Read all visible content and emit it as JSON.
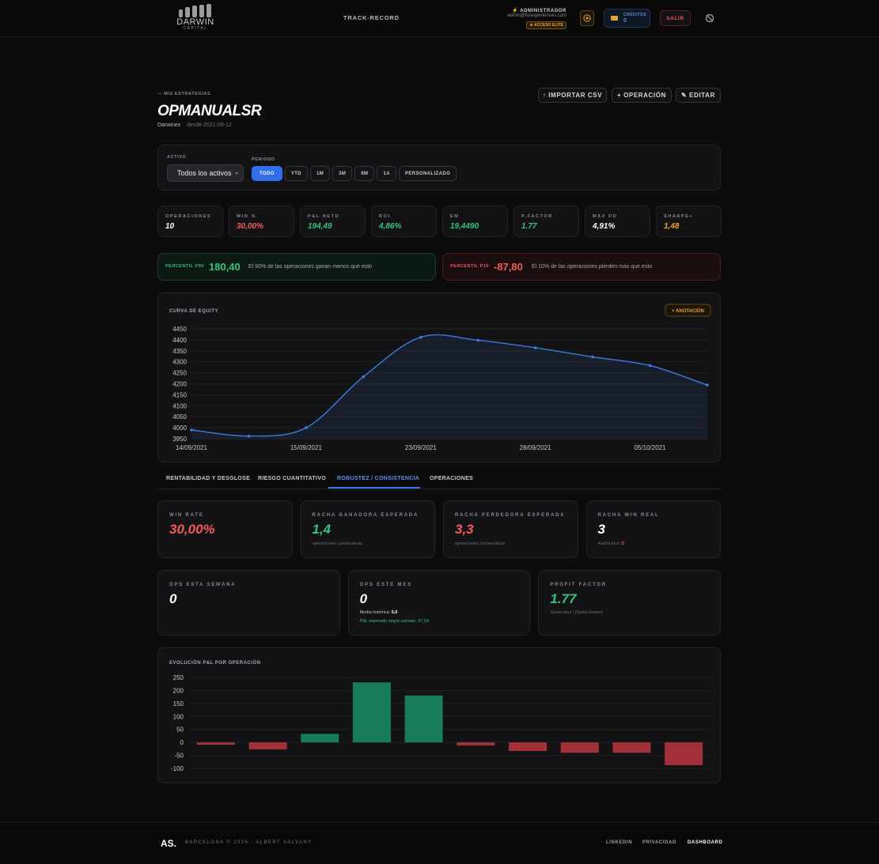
{
  "header": {
    "logo": "DARWIN",
    "logo_sub": "CAPITAL",
    "nav": "TRACK-RECORD",
    "role": "⚡ ADMINISTRADOR",
    "email": "admin@forexperiences.com",
    "badge": "★ ACCESO ELITE",
    "credits_label": "CRÉDITOS",
    "credits_value": "0",
    "logout": "SALIR"
  },
  "page": {
    "breadcrumb": "— MIS ESTRATEGIAS",
    "title": "OPMANUALSR",
    "broker": "Darwinex",
    "since": "desde 2021-09-12",
    "actions": [
      "↑ IMPORTAR CSV",
      "+ OPERACIÓN",
      "✎ EDITAR"
    ]
  },
  "filters": {
    "asset_label": "ACTIVO",
    "asset_value": "Todos los activos",
    "period_label": "PERIODO",
    "periods": [
      "TODO",
      "YTD",
      "1M",
      "3M",
      "6M",
      "1A",
      "PERSONALIZADO"
    ],
    "active_period": 0
  },
  "stats": [
    {
      "label": "OPERACIONES",
      "value": "10",
      "tone": "white"
    },
    {
      "label": "WIN %",
      "value": "30,00%",
      "tone": "red"
    },
    {
      "label": "P&L NETO",
      "value": "194,49",
      "tone": "green"
    },
    {
      "label": "ROI",
      "value": "4,86%",
      "tone": "green"
    },
    {
      "label": "EM",
      "value": "19,4490",
      "tone": "green"
    },
    {
      "label": "P.FACTOR",
      "value": "1.77",
      "tone": "green"
    },
    {
      "label": "MAX DD",
      "value": "4,91%",
      "tone": "white"
    },
    {
      "label": "SHARPE+",
      "value": "1,48",
      "tone": "orange"
    }
  ],
  "percentiles": [
    {
      "label": "PERCENTIL P90",
      "value": "180,40",
      "text": "El 90% de las operaciones ganan menos que esto",
      "tone": "green"
    },
    {
      "label": "PERCENTIL P10",
      "value": "-87,80",
      "text": "El 10% de las operaciones pierden más que esto",
      "tone": "red"
    }
  ],
  "tabs": {
    "items": [
      "RENTABILIDAD Y DESGLOSE",
      "RIESGO CUANTITATIVO",
      "ROBUSTEZ / CONSISTENCIA",
      "OPERACIONES"
    ],
    "active": 2
  },
  "cards": [
    [
      {
        "label": "WIN RATE",
        "value": "30,00%",
        "tone": "red"
      },
      {
        "label": "RACHA GANADORA ESPERADA",
        "value": "1,4",
        "tone": "green",
        "note": "operaciones consecutivas"
      },
      {
        "label": "RACHA PERDEDORA ESPERADA",
        "value": "3,3",
        "tone": "red",
        "note": "operaciones consecutivas"
      },
      {
        "label": "RACHA WIN REAL",
        "value": "3",
        "tone": "white",
        "note": "Racha loss:",
        "note_value": "5"
      }
    ],
    [
      {
        "label": "OPS ESTA SEMANA",
        "value": "0",
        "tone": "white"
      },
      {
        "label": "OPS ESTE MES",
        "value": "0",
        "tone": "white",
        "note": "Media histórica:",
        "note_value": "5,0",
        "note2": "P&L esperado según winrate: 97,24"
      },
      {
        "label": "PROFIT FACTOR",
        "value": "1.77",
        "tone": "green",
        "note": "Suma wins / |Suma losses|"
      }
    ]
  ],
  "chart_data": [
    {
      "type": "line",
      "title": "CURVA DE EQUITY",
      "button": "+ ANOTACIÓN",
      "categories": [
        "14/09/2021",
        null,
        "15/09/2021",
        null,
        "23/09/2021",
        null,
        "28/09/2021",
        null,
        "05/10/2021",
        null
      ],
      "series": [
        {
          "color": "#3d7be0",
          "values": [
            3990,
            3962,
            4000,
            4232,
            4412,
            4398,
            4364,
            4322,
            4283,
            4194
          ]
        }
      ],
      "ylim": [
        3950,
        4450
      ],
      "yticks": [
        4450,
        4400,
        4350,
        4300,
        4250,
        4200,
        4150,
        4100,
        4050,
        4000,
        3950
      ],
      "grid": true
    },
    {
      "type": "bar",
      "title": "EVOLUCIÓN P&L POR OPERACIÓN",
      "values": [
        -9,
        -27,
        33,
        231,
        180.4,
        -12,
        -33,
        -40,
        -40,
        -87.8
      ],
      "positive_color": "#167d58",
      "negative_color": "#a3313a",
      "ylim": [
        -100,
        250
      ],
      "yticks": [
        250,
        200,
        150,
        100,
        50,
        0,
        -50,
        -100
      ],
      "grid": true
    }
  ],
  "footer": {
    "brand": "AS.",
    "text": "BARCELONA © 2026 · ALBERT SALVANY",
    "links": [
      "LINKEDIN",
      "PRIVACIDAD",
      "DASHBOARD"
    ],
    "active_link": 2
  }
}
